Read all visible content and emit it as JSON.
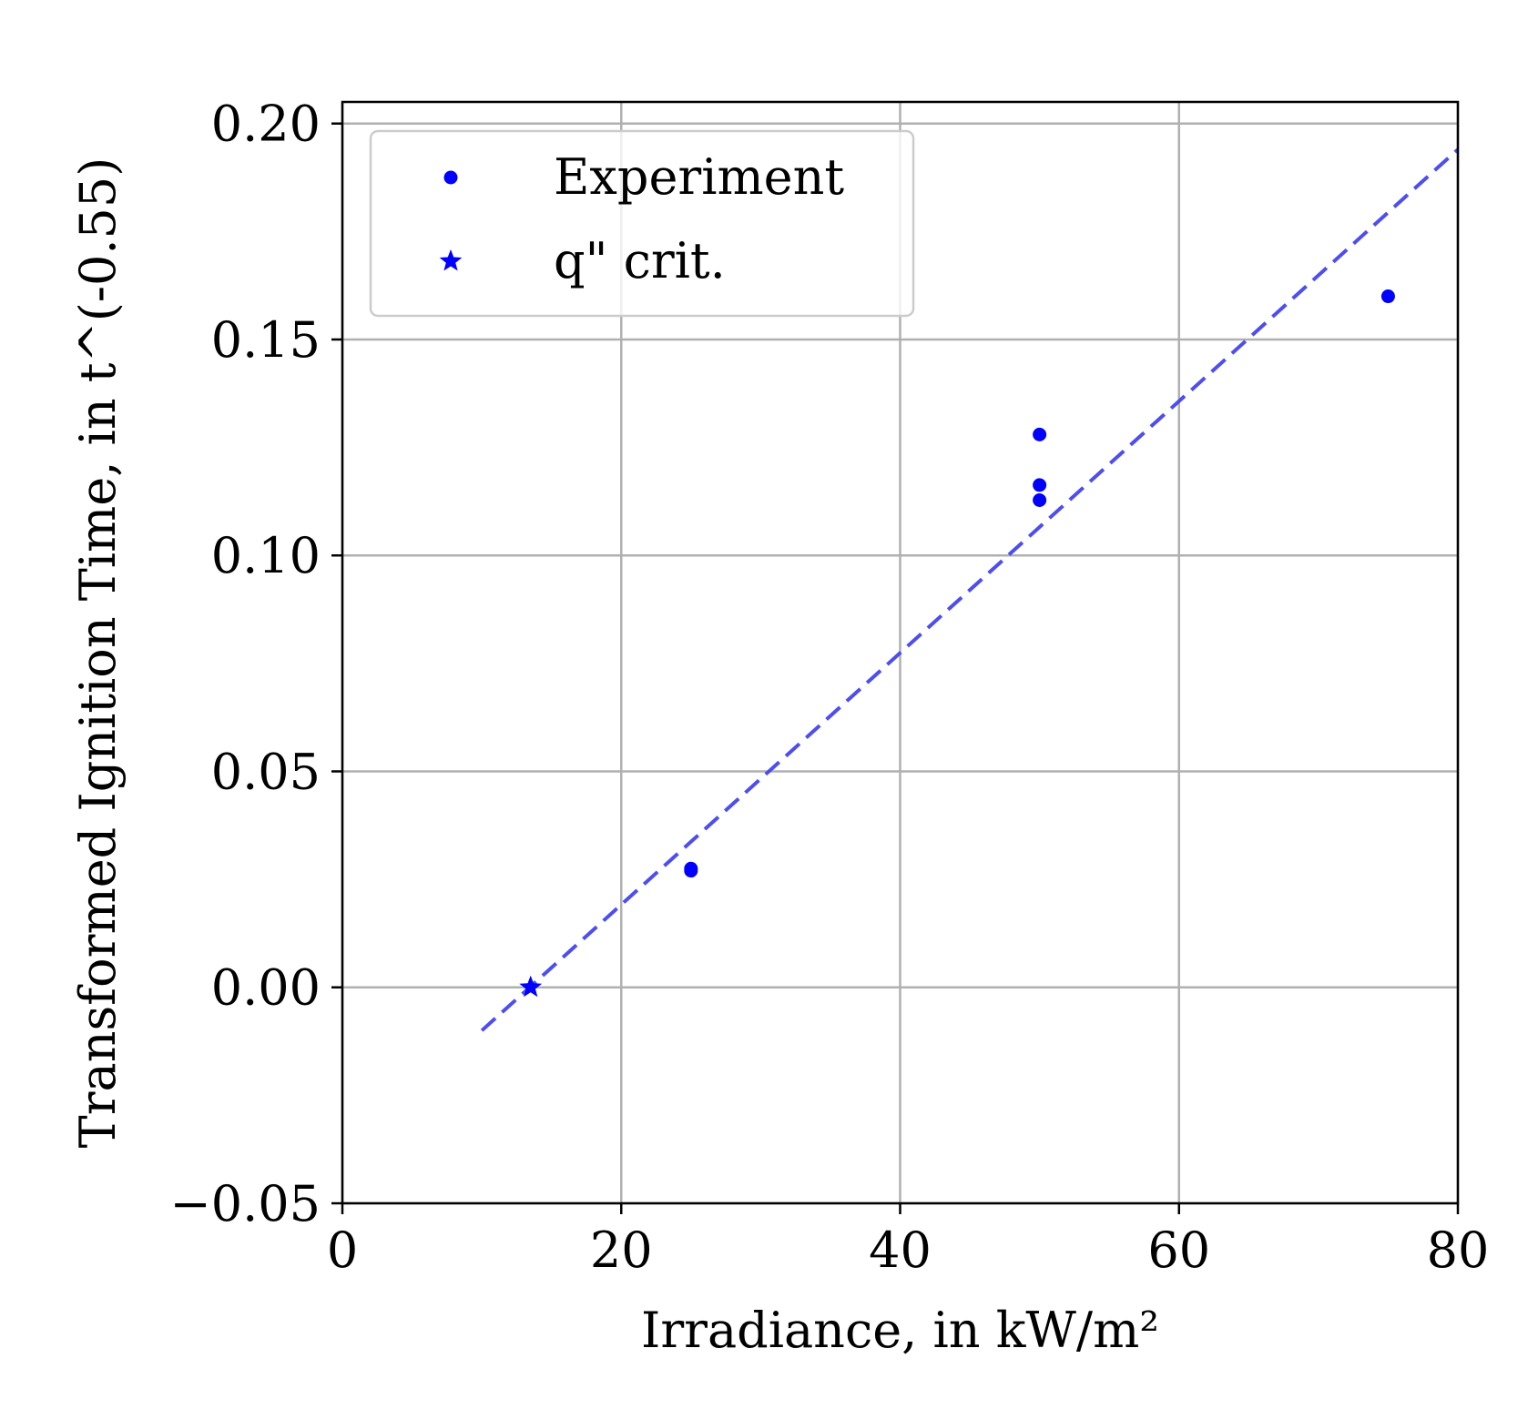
{
  "chart_data": {
    "type": "scatter",
    "title": "",
    "xlabel": "Irradiance, in kW/m²",
    "ylabel": "Transformed Ignition Time, in t^(-0.55)",
    "xlim": [
      0,
      80
    ],
    "ylim": [
      -0.05,
      0.205
    ],
    "x_ticks": [
      0,
      20,
      40,
      60,
      80
    ],
    "y_ticks": [
      -0.05,
      0.0,
      0.05,
      0.1,
      0.15,
      0.2
    ],
    "x_tick_labels": [
      "0",
      "20",
      "40",
      "60",
      "80"
    ],
    "y_tick_labels": [
      "−0.05",
      "0.00",
      "0.05",
      "0.10",
      "0.15",
      "0.20"
    ],
    "grid": true,
    "legend_position": "top-left",
    "series": [
      {
        "name": "Experiment",
        "kind": "scatter",
        "marker": "circle",
        "color": "#0000ff",
        "points": [
          {
            "x": 25,
            "y": 0.027
          },
          {
            "x": 25,
            "y": 0.0275
          },
          {
            "x": 50,
            "y": 0.128
          },
          {
            "x": 50,
            "y": 0.1163
          },
          {
            "x": 50,
            "y": 0.1128
          },
          {
            "x": 75,
            "y": 0.16
          }
        ]
      },
      {
        "name": "q\" crit.",
        "kind": "scatter",
        "marker": "star",
        "color": "#0000ff",
        "points": [
          {
            "x": 13.5,
            "y": 0.0
          }
        ]
      },
      {
        "kind": "line",
        "style": "dashed",
        "color": "#4444ee",
        "points": [
          {
            "x": 10,
            "y": -0.01
          },
          {
            "x": 80,
            "y": 0.194
          }
        ]
      }
    ]
  }
}
